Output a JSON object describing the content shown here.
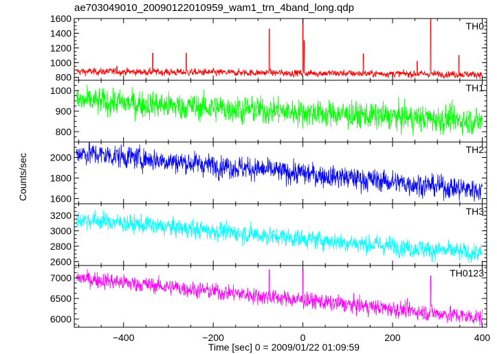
{
  "header": {
    "title": "ae703049010_20090122010959_wam1_trn_4band_long.qdp"
  },
  "axes": {
    "ylabel": "Counts/sec",
    "xlabel": "Time [sec] 0 = 2009/01/22 01:09:59"
  },
  "chart_data": {
    "type": "line",
    "x_range": [
      -510,
      410
    ],
    "x_ticks": [
      -400,
      -200,
      0,
      200,
      400
    ],
    "x_tick_labels": [
      "−400",
      "−200",
      "0",
      "200",
      "400"
    ],
    "xlabel": "Time [sec] 0 = 2009/01/22 01:09:59",
    "ylabel": "Counts/sec",
    "grid": false,
    "panels": [
      {
        "name": "TH0",
        "color": "#ff0000",
        "ylim": [
          760,
          1600
        ],
        "yticks": [
          800,
          1000,
          1200,
          1400,
          1600
        ],
        "trend": {
          "x": [
            -505,
            400
          ],
          "y": [
            880,
            840
          ]
        },
        "noise": 22,
        "spikes": [
          {
            "x": -415,
            "y": 950
          },
          {
            "x": -335,
            "y": 1130
          },
          {
            "x": -260,
            "y": 1130
          },
          {
            "x": -75,
            "y": 1460
          },
          {
            "x": 0,
            "y": 1600
          },
          {
            "x": 3,
            "y": 1300
          },
          {
            "x": 135,
            "y": 1120
          },
          {
            "x": 255,
            "y": 1020
          },
          {
            "x": 285,
            "y": 1600
          },
          {
            "x": 348,
            "y": 1100
          }
        ]
      },
      {
        "name": "TH1",
        "color": "#00ff00",
        "ylim": [
          750,
          1050
        ],
        "yticks": [
          800,
          900,
          1000
        ],
        "trend": {
          "x": [
            -505,
            400
          ],
          "y": [
            950,
            850
          ]
        },
        "noise": 30,
        "spikes": []
      },
      {
        "name": "TH2",
        "color": "#0000ff",
        "ylim": [
          1550,
          2150
        ],
        "yticks": [
          1600,
          1800,
          2000
        ],
        "trend": {
          "x": [
            -505,
            400
          ],
          "y": [
            2050,
            1680
          ]
        },
        "noise": 50,
        "spikes": []
      },
      {
        "name": "TH3",
        "color": "#00ffff",
        "ylim": [
          2550,
          3350
        ],
        "yticks": [
          2600,
          2800,
          3000,
          3200
        ],
        "trend": {
          "x": [
            -505,
            400
          ],
          "y": [
            3150,
            2700
          ]
        },
        "noise": 55,
        "spikes": []
      },
      {
        "name": "TH0123",
        "color": "#ff00ff",
        "ylim": [
          5800,
          7300
        ],
        "yticks": [
          6000,
          6500,
          7000
        ],
        "trend": {
          "x": [
            -505,
            400
          ],
          "y": [
            7000,
            6030
          ]
        },
        "noise": 90,
        "spikes": [
          {
            "x": -75,
            "y": 7200
          },
          {
            "x": 0,
            "y": 7200
          },
          {
            "x": 285,
            "y": 7050
          }
        ]
      }
    ]
  }
}
